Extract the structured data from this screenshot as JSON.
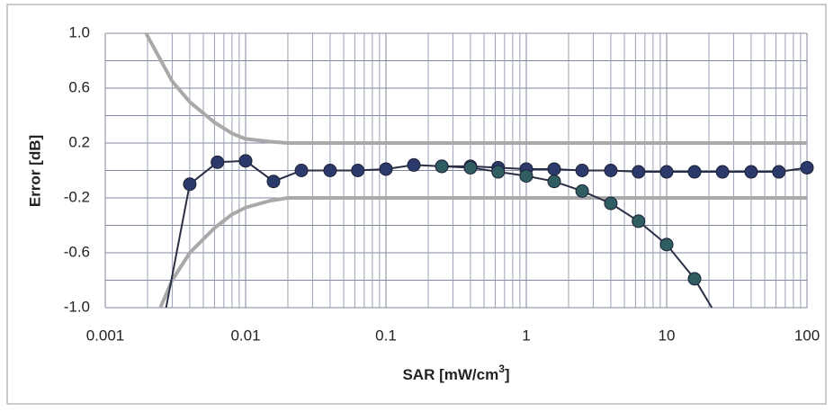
{
  "chart_data": {
    "type": "line",
    "y_label": "Error [dB]",
    "x_label": {
      "text": "SAR [mW/cm",
      "sup": "3",
      "tail": "]"
    },
    "x_log": true,
    "xlim": [
      0.001,
      100
    ],
    "xticks": [
      0.001,
      0.01,
      0.1,
      1,
      10,
      100
    ],
    "x_minor_grid": true,
    "ylim": [
      -1,
      1
    ],
    "yticks": [
      {
        "value": 1,
        "label": "1.0"
      },
      0.6,
      0.2,
      -0.2,
      -0.6,
      {
        "value": -1,
        "label": "-1.0"
      }
    ],
    "y_minor_ticks": [
      0.8,
      0.4,
      0,
      -0.4,
      -0.8
    ],
    "grid": true,
    "series": [
      {
        "color": "#a9a9a9",
        "markers": false,
        "x": [
          0.0019,
          0.002,
          0.003,
          0.004,
          0.006,
          0.008,
          0.01,
          0.015,
          0.02,
          100
        ],
        "values": [
          1.03,
          0.98,
          0.65,
          0.5,
          0.35,
          0.27,
          0.23,
          0.21,
          0.2,
          0.2
        ]
      },
      {
        "color": "#a9a9a9",
        "markers": false,
        "x": [
          0.0024,
          0.003,
          0.004,
          0.006,
          0.008,
          0.01,
          0.015,
          0.02,
          100
        ],
        "values": [
          -1.03,
          -0.8,
          -0.6,
          -0.42,
          -0.32,
          -0.27,
          -0.22,
          -0.2,
          -0.2
        ]
      },
      {
        "color": "#2b3a6b",
        "markers": true,
        "x": [
          0.0026,
          0.004,
          0.0063,
          0.01,
          0.0158,
          0.025,
          0.04,
          0.063,
          0.1,
          0.158,
          0.25,
          0.4,
          0.63,
          1,
          1.58,
          2.5,
          4,
          6.3,
          10,
          15.8,
          25,
          40,
          63,
          100
        ],
        "values": [
          -1.1,
          -0.1,
          0.06,
          0.07,
          -0.08,
          0,
          0,
          0,
          0.01,
          0.04,
          0.03,
          0.03,
          0.02,
          0.01,
          0.01,
          0,
          0,
          -0.01,
          -0.01,
          -0.01,
          -0.01,
          -0.01,
          -0.01,
          0.02
        ]
      },
      {
        "color": "#2f5d62",
        "markers": true,
        "x": [
          0.25,
          0.4,
          0.63,
          1,
          1.58,
          2.5,
          4,
          6.3,
          10,
          15.8,
          25
        ],
        "values": [
          0.03,
          0.02,
          -0.01,
          -0.04,
          -0.08,
          -0.15,
          -0.24,
          -0.37,
          -0.54,
          -0.79,
          -1.13
        ]
      }
    ]
  }
}
